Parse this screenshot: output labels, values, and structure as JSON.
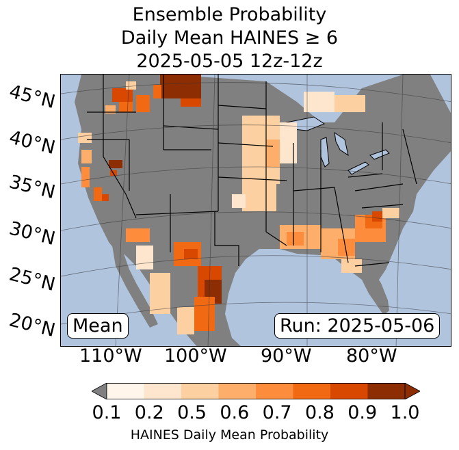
{
  "title": {
    "line1": "Ensemble Probability",
    "line2": "Daily Mean HAINES ≥ 6",
    "line3": "2025-05-05 12z-12z"
  },
  "map": {
    "region": "Continental United States",
    "mean_label": "Mean",
    "run_label": "Run: 2025-05-06",
    "ocean_color": "#b0c4de",
    "land_color": "#808080",
    "lat_labels": [
      "45°N",
      "40°N",
      "35°N",
      "30°N",
      "25°N",
      "20°N"
    ],
    "lon_labels": [
      "110°W",
      "100°W",
      "90°W",
      "80°W"
    ]
  },
  "colorbar": {
    "label": "HAINES Daily Mean Probability",
    "ticks": [
      "0.1",
      "0.2",
      "0.5",
      "0.6",
      "0.7",
      "0.8",
      "0.9",
      "1.0"
    ],
    "under_color": "#808080",
    "colors": [
      "#fff5eb",
      "#fee6ce",
      "#fdd0a2",
      "#fdae6b",
      "#fd8d3c",
      "#f16913",
      "#d94801",
      "#8c2d04"
    ],
    "over_color": "#8c2d04"
  }
}
